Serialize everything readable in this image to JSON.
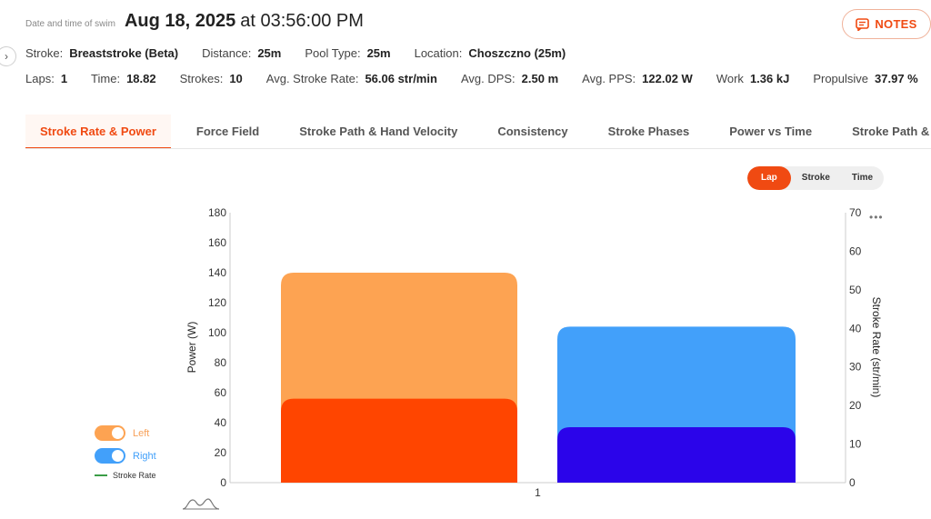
{
  "header": {
    "label": "Date and time of swim",
    "date": "Aug 18, 2025",
    "time": "at 03:56:00 PM",
    "notes_label": "NOTES"
  },
  "summary_row1": [
    {
      "key": "Stroke:",
      "value": "Breaststroke (Beta)"
    },
    {
      "key": "Distance:",
      "value": "25m"
    },
    {
      "key": "Pool Type:",
      "value": "25m"
    },
    {
      "key": "Location:",
      "value": "Choszczno (25m)"
    }
  ],
  "summary_row2": [
    {
      "key": "Laps:",
      "value": "1"
    },
    {
      "key": "Time:",
      "value": "18.82"
    },
    {
      "key": "Strokes:",
      "value": "10"
    },
    {
      "key": "Avg. Stroke Rate:",
      "value": "56.06 str/min"
    },
    {
      "key": "Avg. DPS:",
      "value": "2.50 m"
    },
    {
      "key": "Avg. PPS:",
      "value": "122.02 W"
    },
    {
      "key": "Work",
      "value": "1.36 kJ"
    },
    {
      "key": "Propulsive",
      "value": "37.97 %"
    }
  ],
  "tabs": [
    {
      "label": "Stroke Rate & Power",
      "active": true
    },
    {
      "label": "Force Field"
    },
    {
      "label": "Stroke Path & Hand Velocity"
    },
    {
      "label": "Consistency"
    },
    {
      "label": "Stroke Phases"
    },
    {
      "label": "Power vs Time"
    },
    {
      "label": "Stroke Path & Power"
    }
  ],
  "segment": {
    "options": [
      "Lap",
      "Stroke",
      "Time"
    ],
    "selected": "Lap"
  },
  "legend": {
    "left_label": "Left",
    "right_label": "Right",
    "stroke_rate_label": "Stroke Rate"
  },
  "colors": {
    "accent": "#f04a12",
    "left_total": "#fda352",
    "left_inner": "#ff4500",
    "right_total": "#42a0fa",
    "right_inner": "#2b04ea",
    "stroke_rate": "#3b9d47"
  },
  "icons": {
    "notes": "notes-icon",
    "expand": "chevron-right-icon",
    "more": "more-dots-icon",
    "wave": "wave-icon"
  },
  "chart_data": {
    "type": "bar",
    "categories": [
      "1"
    ],
    "ylabel": "Power (W)",
    "y2label": "Stroke Rate (str/min)",
    "ylim": [
      0,
      180
    ],
    "y2lim": [
      0,
      70
    ],
    "yticks": [
      0,
      20,
      40,
      60,
      80,
      100,
      120,
      140,
      160,
      180
    ],
    "y2ticks": [
      0,
      10,
      20,
      30,
      40,
      50,
      60,
      70
    ],
    "series": [
      {
        "name": "Left",
        "values": [
          140
        ],
        "inner_values": [
          56
        ]
      },
      {
        "name": "Right",
        "values": [
          104
        ],
        "inner_values": [
          37
        ]
      }
    ],
    "grid": false
  }
}
